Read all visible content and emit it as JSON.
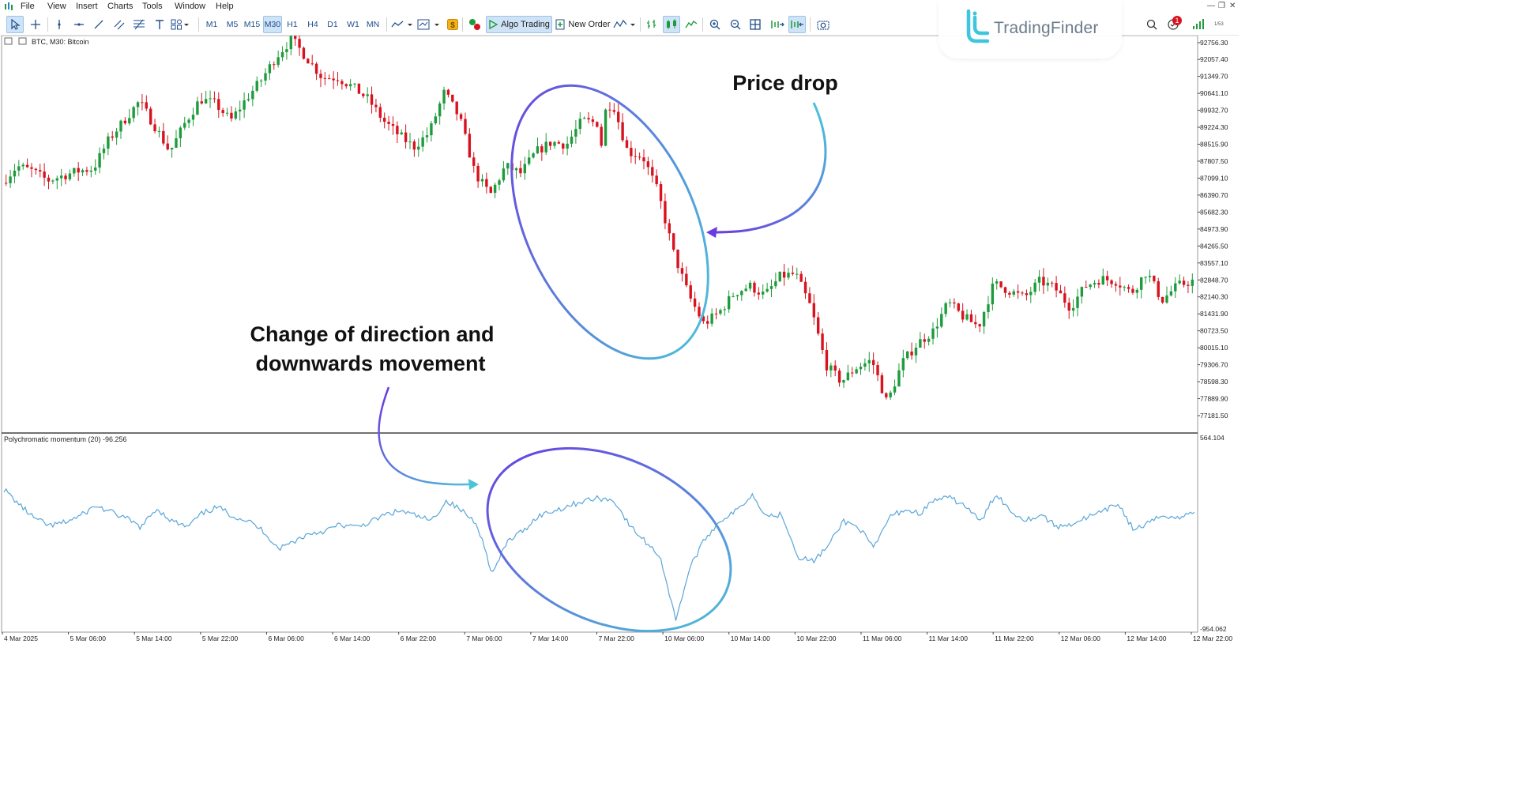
{
  "menu": {
    "items": [
      "File",
      "View",
      "Insert",
      "Charts",
      "Tools",
      "Window",
      "Help"
    ]
  },
  "toolbar": {
    "timeframes": [
      "M1",
      "M5",
      "M15",
      "M30",
      "H1",
      "H4",
      "D1",
      "W1",
      "MN"
    ],
    "active_timeframe": "M30",
    "algo_trading": "Algo Trading",
    "new_order": "New Order",
    "notification_count": "1",
    "signal_strength": "1/53"
  },
  "watermark": {
    "text": "TradingFinder"
  },
  "chart": {
    "symbol_label": "BTC, M30:  Bitcoin",
    "indicator_label": "Polychromatic momentum (20) -96.256",
    "price_axis": [
      "92756.30",
      "92057.40",
      "91349.70",
      "90641.10",
      "89932.70",
      "89224.30",
      "88515.90",
      "87807.50",
      "87099.10",
      "86390.70",
      "85682.30",
      "84973.90",
      "84265.50",
      "83557.10",
      "82848.70",
      "82140.30",
      "81431.90",
      "80723.50",
      "80015.10",
      "79306.70",
      "78598.30",
      "77889.90",
      "77181.50"
    ],
    "indicator_axis": [
      "564.104",
      "-954.062"
    ],
    "time_axis": [
      "4 Mar 2025",
      "5 Mar 06:00",
      "5 Mar 14:00",
      "5 Mar 22:00",
      "6 Mar 06:00",
      "6 Mar 14:00",
      "6 Mar 22:00",
      "7 Mar 06:00",
      "7 Mar 14:00",
      "7 Mar 22:00",
      "10 Mar 06:00",
      "10 Mar 14:00",
      "10 Mar 22:00",
      "11 Mar 06:00",
      "11 Mar 14:00",
      "11 Mar 22:00",
      "12 Mar 06:00",
      "12 Mar 14:00",
      "12 Mar 22:00"
    ],
    "colors": {
      "bull": "#1e9b3c",
      "bear": "#d8121e",
      "indicator_line": "#5aa6d9"
    }
  },
  "annotations": {
    "price_drop": "Price drop",
    "direction_change_line1": "Change of direction and",
    "direction_change_line2": "downwards movement",
    "gradient": [
      "#6a3be0",
      "#4cc3d9"
    ]
  },
  "chart_data": {
    "type": "candlestick",
    "price_close_path": [
      86900,
      87600,
      87400,
      87000,
      87200,
      87400,
      87500,
      88700,
      89500,
      90300,
      89300,
      88200,
      89400,
      90400,
      90200,
      89500,
      90400,
      91200,
      92200,
      92900,
      92100,
      91300,
      91300,
      90900,
      90400,
      89500,
      88900,
      88400,
      89000,
      90700,
      89600,
      87300,
      86400,
      87600,
      87300,
      88200,
      88600,
      88500,
      89500,
      89400,
      90300,
      88200,
      88000,
      86500,
      84000,
      82200,
      81000,
      81500,
      82300,
      82600,
      82200,
      83000,
      83100,
      81700,
      79300,
      78600,
      79200,
      79500,
      77700,
      79400,
      80200,
      80700,
      81900,
      81300,
      80900,
      82700,
      82400,
      82100,
      82800,
      82500,
      81700,
      82600,
      82900,
      82800,
      82300,
      83200,
      82000,
      82600,
      82800
    ],
    "momentum_path": [
      150,
      30,
      -80,
      -140,
      -110,
      -60,
      20,
      -30,
      -80,
      -150,
      0,
      -100,
      -150,
      -40,
      10,
      -60,
      -100,
      -180,
      -320,
      -260,
      -200,
      -180,
      -130,
      -150,
      -110,
      -50,
      -20,
      -60,
      -100,
      60,
      -20,
      -120,
      -520,
      -260,
      -180,
      -60,
      -20,
      20,
      60,
      80,
      60,
      -140,
      -260,
      -380,
      -880,
      -450,
      -230,
      -90,
      -20,
      110,
      -60,
      -50,
      -380,
      -420,
      -300,
      -100,
      -150,
      -320,
      -70,
      -10,
      -40,
      70,
      80,
      20,
      -110,
      120,
      -30,
      -90,
      -50,
      -150,
      -120,
      -70,
      -30,
      40,
      -170,
      -120,
      -50,
      -80,
      -20
    ]
  }
}
